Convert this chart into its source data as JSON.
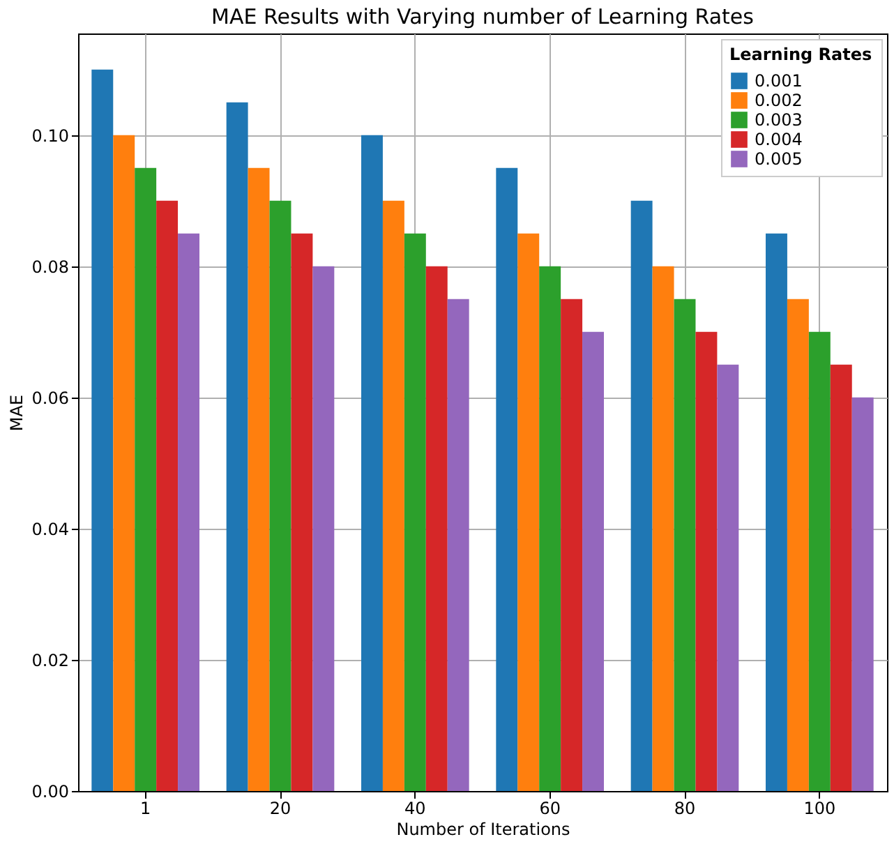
{
  "chart_data": {
    "type": "bar",
    "title": "MAE Results with Varying number of Learning Rates",
    "xlabel": "Number of Iterations",
    "ylabel": "MAE",
    "legend_title": "Learning Rates",
    "categories": [
      "1",
      "20",
      "40",
      "60",
      "80",
      "100"
    ],
    "series": [
      {
        "name": "0.001",
        "color": "#1f77b4",
        "values": [
          0.11,
          0.105,
          0.1,
          0.095,
          0.09,
          0.085
        ]
      },
      {
        "name": "0.002",
        "color": "#ff7f0e",
        "values": [
          0.1,
          0.095,
          0.09,
          0.085,
          0.08,
          0.075
        ]
      },
      {
        "name": "0.003",
        "color": "#2ca02c",
        "values": [
          0.095,
          0.09,
          0.085,
          0.08,
          0.075,
          0.07
        ]
      },
      {
        "name": "0.004",
        "color": "#d62728",
        "values": [
          0.09,
          0.085,
          0.08,
          0.075,
          0.07,
          0.065
        ]
      },
      {
        "name": "0.005",
        "color": "#9467bd",
        "values": [
          0.085,
          0.08,
          0.075,
          0.07,
          0.065,
          0.06
        ]
      }
    ],
    "ylim": [
      0,
      0.1155
    ],
    "yticks": [
      {
        "value": 0,
        "label": "0.00"
      },
      {
        "value": 0.02,
        "label": "0.02"
      },
      {
        "value": 0.04,
        "label": "0.04"
      },
      {
        "value": 0.06,
        "label": "0.06"
      },
      {
        "value": 0.08,
        "label": "0.08"
      },
      {
        "value": 0.1,
        "label": "0.10"
      }
    ],
    "grid": true,
    "legend": "top right"
  }
}
